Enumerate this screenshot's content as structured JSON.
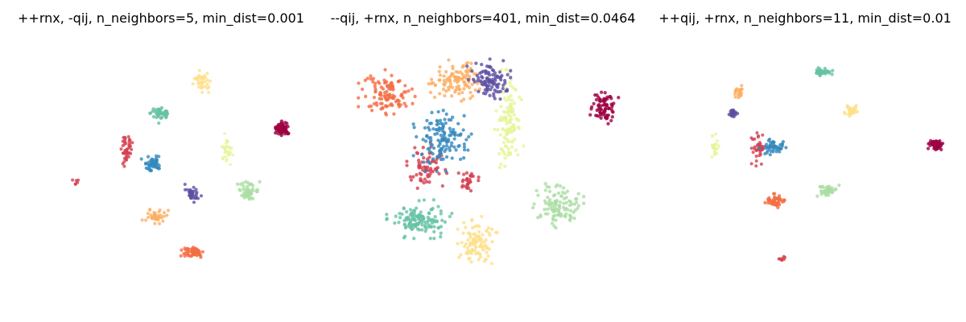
{
  "chart_data": [
    {
      "type": "scatter",
      "title": "++rnx, -qij, n_neighbors=5, min_dist=0.001",
      "axes_visible": false,
      "clusters": [
        {
          "label": 0,
          "color": "#9e0142",
          "center": [
            0.92,
            0.36
          ],
          "spread": [
            0.012,
            0.012
          ],
          "n": 60,
          "marker_size": 3.2
        },
        {
          "label": 1,
          "color": "#d53e4f",
          "center": [
            0.38,
            0.43
          ],
          "spread": [
            0.01,
            0.03
          ],
          "n": 45,
          "marker_size": 2.8
        },
        {
          "label": 1,
          "color": "#d53e4f",
          "center": [
            0.21,
            0.57
          ],
          "spread": [
            0.008,
            0.008
          ],
          "n": 6,
          "marker_size": 2.8
        },
        {
          "label": 2,
          "color": "#f46d43",
          "center": [
            0.61,
            0.84
          ],
          "spread": [
            0.018,
            0.012
          ],
          "n": 55,
          "marker_size": 3.0
        },
        {
          "label": 3,
          "color": "#fdae61",
          "center": [
            0.48,
            0.7
          ],
          "spread": [
            0.018,
            0.012
          ],
          "n": 40,
          "marker_size": 2.8
        },
        {
          "label": 4,
          "color": "#fee08b",
          "center": [
            0.64,
            0.18
          ],
          "spread": [
            0.012,
            0.022
          ],
          "n": 45,
          "marker_size": 2.8
        },
        {
          "label": 5,
          "color": "#e6f598",
          "center": [
            0.73,
            0.44
          ],
          "spread": [
            0.01,
            0.025
          ],
          "n": 30,
          "marker_size": 2.6
        },
        {
          "label": 6,
          "color": "#abdda4",
          "center": [
            0.8,
            0.6
          ],
          "spread": [
            0.018,
            0.014
          ],
          "n": 50,
          "marker_size": 3.0
        },
        {
          "label": 7,
          "color": "#66c2a5",
          "center": [
            0.5,
            0.3
          ],
          "spread": [
            0.018,
            0.015
          ],
          "n": 45,
          "marker_size": 3.0
        },
        {
          "label": 8,
          "color": "#3288bd",
          "center": [
            0.47,
            0.49
          ],
          "spread": [
            0.015,
            0.015
          ],
          "n": 45,
          "marker_size": 3.0
        },
        {
          "label": 9,
          "color": "#5e4fa2",
          "center": [
            0.61,
            0.61
          ],
          "spread": [
            0.012,
            0.014
          ],
          "n": 35,
          "marker_size": 2.8
        }
      ]
    },
    {
      "type": "scatter",
      "title": "--qij, +rnx, n_neighbors=401, min_dist=0.0464",
      "axes_visible": false,
      "clusters": [
        {
          "label": 0,
          "color": "#9e0142",
          "center": [
            0.92,
            0.28
          ],
          "spread": [
            0.02,
            0.025
          ],
          "n": 80,
          "marker_size": 3.0
        },
        {
          "label": 1,
          "color": "#d53e4f",
          "center": [
            0.3,
            0.5
          ],
          "spread": [
            0.03,
            0.04
          ],
          "n": 70,
          "marker_size": 3.0
        },
        {
          "label": 1,
          "color": "#d53e4f",
          "center": [
            0.45,
            0.56
          ],
          "spread": [
            0.02,
            0.03
          ],
          "n": 30,
          "marker_size": 3.0
        },
        {
          "label": 2,
          "color": "#f46d43",
          "center": [
            0.17,
            0.23
          ],
          "spread": [
            0.04,
            0.04
          ],
          "n": 110,
          "marker_size": 3.0
        },
        {
          "label": 3,
          "color": "#fdae61",
          "center": [
            0.4,
            0.17
          ],
          "spread": [
            0.04,
            0.035
          ],
          "n": 110,
          "marker_size": 3.0
        },
        {
          "label": 4,
          "color": "#fee08b",
          "center": [
            0.48,
            0.8
          ],
          "spread": [
            0.03,
            0.04
          ],
          "n": 100,
          "marker_size": 3.0
        },
        {
          "label": 5,
          "color": "#e6f598",
          "center": [
            0.59,
            0.33
          ],
          "spread": [
            0.02,
            0.08
          ],
          "n": 120,
          "marker_size": 3.0
        },
        {
          "label": 6,
          "color": "#abdda4",
          "center": [
            0.76,
            0.66
          ],
          "spread": [
            0.035,
            0.035
          ],
          "n": 110,
          "marker_size": 3.0
        },
        {
          "label": 7,
          "color": "#66c2a5",
          "center": [
            0.28,
            0.71
          ],
          "spread": [
            0.045,
            0.03
          ],
          "n": 130,
          "marker_size": 3.0
        },
        {
          "label": 8,
          "color": "#3288bd",
          "center": [
            0.36,
            0.4
          ],
          "spread": [
            0.04,
            0.05
          ],
          "n": 130,
          "marker_size": 3.0
        },
        {
          "label": 9,
          "color": "#5e4fa2",
          "center": [
            0.52,
            0.17
          ],
          "spread": [
            0.03,
            0.035
          ],
          "n": 100,
          "marker_size": 3.0
        }
      ]
    },
    {
      "type": "scatter",
      "title": "++qij, +rnx, n_neighbors=11, min_dist=0.01",
      "axes_visible": false,
      "clusters": [
        {
          "label": 0,
          "color": "#9e0142",
          "center": [
            0.95,
            0.42
          ],
          "spread": [
            0.01,
            0.01
          ],
          "n": 55,
          "marker_size": 3.0
        },
        {
          "label": 1,
          "color": "#d53e4f",
          "center": [
            0.34,
            0.44
          ],
          "spread": [
            0.01,
            0.03
          ],
          "n": 40,
          "marker_size": 2.8
        },
        {
          "label": 1,
          "color": "#d53e4f",
          "center": [
            0.42,
            0.86
          ],
          "spread": [
            0.006,
            0.006
          ],
          "n": 8,
          "marker_size": 2.8
        },
        {
          "label": 2,
          "color": "#f46d43",
          "center": [
            0.4,
            0.64
          ],
          "spread": [
            0.015,
            0.012
          ],
          "n": 45,
          "marker_size": 3.0
        },
        {
          "label": 3,
          "color": "#fdae61",
          "center": [
            0.27,
            0.22
          ],
          "spread": [
            0.01,
            0.015
          ],
          "n": 25,
          "marker_size": 2.8
        },
        {
          "label": 4,
          "color": "#fee08b",
          "center": [
            0.66,
            0.29
          ],
          "spread": [
            0.012,
            0.012
          ],
          "n": 35,
          "marker_size": 2.8
        },
        {
          "label": 5,
          "color": "#e6f598",
          "center": [
            0.19,
            0.43
          ],
          "spread": [
            0.006,
            0.02
          ],
          "n": 25,
          "marker_size": 2.6
        },
        {
          "label": 6,
          "color": "#abdda4",
          "center": [
            0.58,
            0.6
          ],
          "spread": [
            0.015,
            0.01
          ],
          "n": 45,
          "marker_size": 3.0
        },
        {
          "label": 7,
          "color": "#66c2a5",
          "center": [
            0.56,
            0.14
          ],
          "spread": [
            0.014,
            0.008
          ],
          "n": 45,
          "marker_size": 3.0
        },
        {
          "label": 8,
          "color": "#3288bd",
          "center": [
            0.39,
            0.43
          ],
          "spread": [
            0.02,
            0.012
          ],
          "n": 45,
          "marker_size": 3.0
        },
        {
          "label": 9,
          "color": "#5e4fa2",
          "center": [
            0.25,
            0.3
          ],
          "spread": [
            0.008,
            0.008
          ],
          "n": 30,
          "marker_size": 3.0
        }
      ]
    }
  ]
}
